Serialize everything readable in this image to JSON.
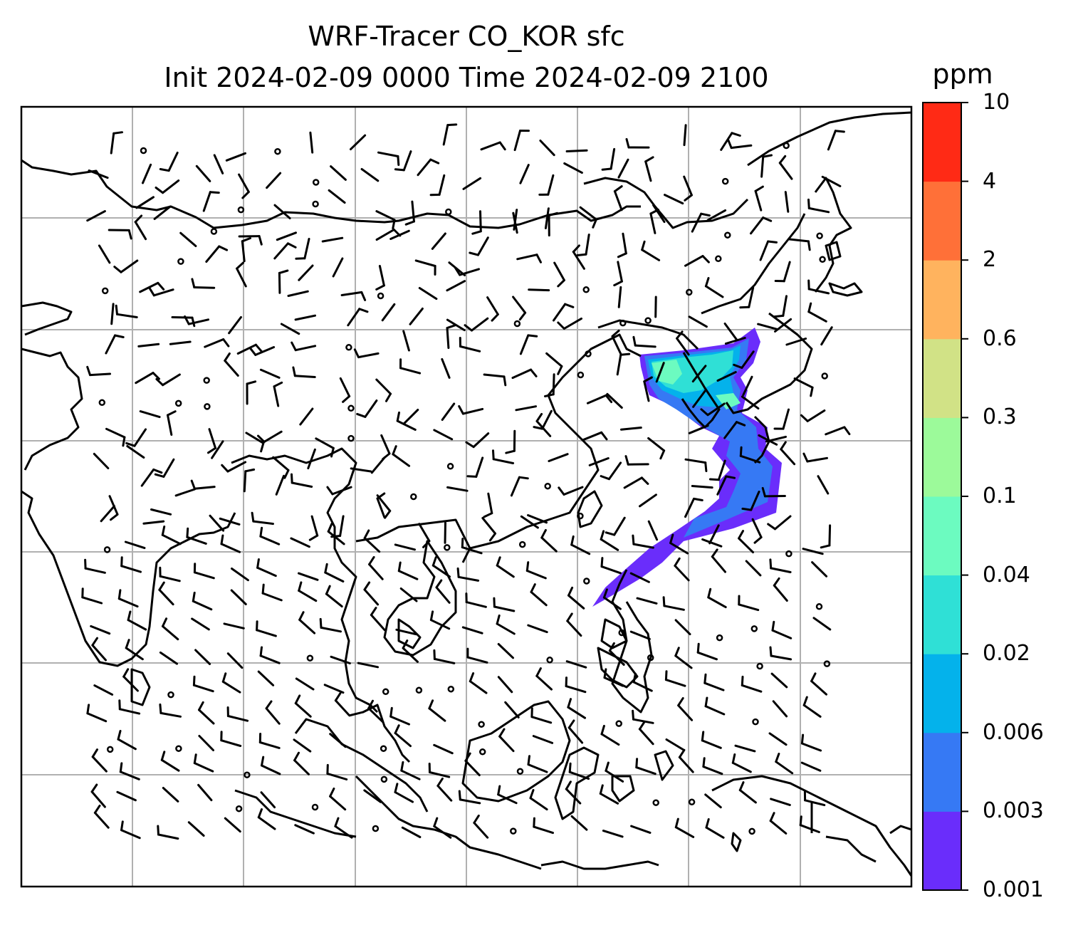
{
  "title": {
    "line1": "WRF-Tracer CO_KOR sfc",
    "line2": "Init 2024-02-09 0000 Time 2024-02-09 2100"
  },
  "colorbar": {
    "unit": "ppm",
    "levels": [
      "0.001",
      "0.003",
      "0.006",
      "0.02",
      "0.04",
      "0.1",
      "0.3",
      "0.6",
      "2",
      "4",
      "10"
    ],
    "colors": [
      "#6a2dfb",
      "#3679f4",
      "#04b2eb",
      "#2fe0d6",
      "#6cfbc0",
      "#9cfa9a",
      "#d1e286",
      "#ffb35e",
      "#ff7038",
      "#ff2a15"
    ]
  },
  "map": {
    "colors": {
      "coast": "#000000",
      "grid": "#b0b0b0",
      "barb": "#000000"
    }
  }
}
